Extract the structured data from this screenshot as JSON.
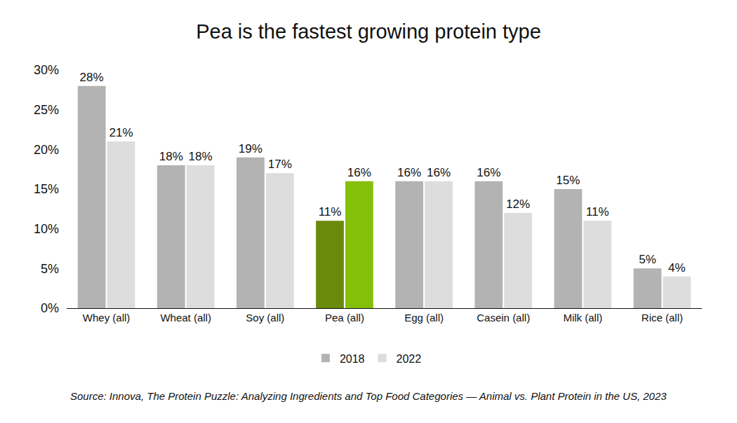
{
  "chart_data": {
    "type": "bar",
    "title": "Pea is the fastest growing protein type",
    "source": "Source: Innova, The Protein Puzzle: Analyzing Ingredients and Top Food Categories — Animal vs. Plant Protein in the US, 2023",
    "categories": [
      "Whey (all)",
      "Wheat (all)",
      "Soy (all)",
      "Pea (all)",
      "Egg (all)",
      "Casein (all)",
      "Milk (all)",
      "Rice (all)"
    ],
    "series": [
      {
        "name": "2018",
        "color": "#b3b3b3",
        "colors": [
          "#b3b3b3",
          "#b3b3b3",
          "#b3b3b3",
          "#6a8a0c",
          "#b3b3b3",
          "#b3b3b3",
          "#b3b3b3",
          "#b3b3b3"
        ],
        "values": [
          28,
          18,
          19,
          11,
          16,
          16,
          15,
          5
        ],
        "value_labels": [
          "28%",
          "18%",
          "19%",
          "11%",
          "16%",
          "16%",
          "15%",
          "5%"
        ]
      },
      {
        "name": "2022",
        "color": "#dddddd",
        "colors": [
          "#dddddd",
          "#dddddd",
          "#dddddd",
          "#84c00a",
          "#dddddd",
          "#dddddd",
          "#dddddd",
          "#dddddd"
        ],
        "values": [
          21,
          18,
          17,
          16,
          16,
          12,
          11,
          4
        ],
        "value_labels": [
          "21%",
          "18%",
          "17%",
          "16%",
          "16%",
          "12%",
          "11%",
          "4%"
        ]
      }
    ],
    "ylim": [
      0,
      30
    ],
    "yticks": [
      {
        "value": 0,
        "label": "0%"
      },
      {
        "value": 5,
        "label": "5%"
      },
      {
        "value": 10,
        "label": "10%"
      },
      {
        "value": 15,
        "label": "15%"
      },
      {
        "value": 20,
        "label": "20%"
      },
      {
        "value": 25,
        "label": "25%"
      },
      {
        "value": 30,
        "label": "30%"
      }
    ],
    "grid": false,
    "legend": "bottom",
    "data_labels": true
  }
}
